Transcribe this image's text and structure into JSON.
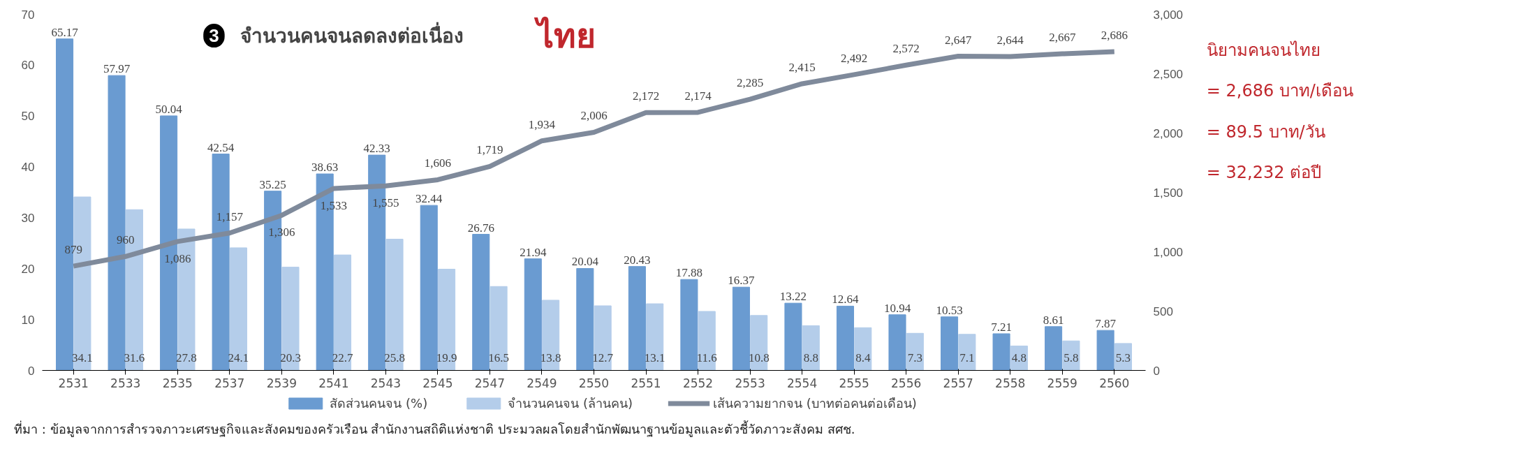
{
  "chart_data": {
    "type": "bar",
    "title": "จำนวนคนจนลดลงต่อเนื่อง",
    "subtitle": "ไทย",
    "categories": [
      "2531",
      "2533",
      "2535",
      "2537",
      "2539",
      "2541",
      "2543",
      "2545",
      "2547",
      "2549",
      "2550",
      "2551",
      "2552",
      "2553",
      "2554",
      "2555",
      "2556",
      "2557",
      "2558",
      "2559",
      "2560"
    ],
    "series": [
      {
        "name": "สัดส่วนคนจน (%)",
        "color": "#6a9bd1",
        "values": [
          65.17,
          57.97,
          50.04,
          42.54,
          35.25,
          38.63,
          42.33,
          32.44,
          26.76,
          21.94,
          20.04,
          20.43,
          17.88,
          16.37,
          13.22,
          12.64,
          10.94,
          10.53,
          7.21,
          8.61,
          7.87
        ],
        "value_labels": [
          "65.17",
          "57.97",
          "50.04",
          "42.54",
          "35.25",
          "38.63",
          "42.33",
          "32.44",
          "26.76",
          "21.94",
          "20.04",
          "20.43",
          "17.88",
          "16.37",
          "13.22",
          "12.64",
          "10.94",
          "10.53",
          "7.21",
          "8.61",
          "7.87"
        ]
      },
      {
        "name": "จำนวนคนจน (ล้านคน)",
        "color": "#b4cdea",
        "values": [
          34.1,
          31.6,
          27.8,
          24.1,
          20.3,
          22.7,
          25.8,
          19.9,
          16.5,
          13.8,
          12.7,
          13.1,
          11.6,
          10.8,
          8.8,
          8.4,
          7.3,
          7.1,
          4.8,
          5.8,
          5.3
        ],
        "value_labels": [
          "34.1",
          "31.6",
          "27.8",
          "24.1",
          "20.3",
          "22.7",
          "25.8",
          "19.9",
          "16.5",
          "13.8",
          "12.7",
          "13.1",
          "11.6",
          "10.8",
          "8.8",
          "8.4",
          "7.3",
          "7.1",
          "4.8",
          "5.8",
          "5.3"
        ]
      },
      {
        "name": "เส้นความยากจน (บาทต่อคนต่อเดือน)",
        "type": "line",
        "axis": "y2",
        "color": "#7f8a9b",
        "values": [
          879,
          960,
          1086,
          1157,
          1306,
          1533,
          1555,
          1606,
          1719,
          1934,
          2006,
          2172,
          2174,
          2285,
          2415,
          2492,
          2572,
          2647,
          2644,
          2667,
          2686
        ],
        "value_labels": [
          "879",
          "960",
          "1,086",
          "1,157",
          "1,306",
          "1,533",
          "1,555",
          "1,606",
          "1,719",
          "1,934",
          "2,006",
          "2,172",
          "2,174",
          "2,285",
          "2,415",
          "2,492",
          "2,572",
          "2,647",
          "2,644",
          "2,667",
          "2,686"
        ]
      }
    ],
    "ylim": [
      0,
      70
    ],
    "yticks": [
      0,
      10,
      20,
      30,
      40,
      50,
      60,
      70
    ],
    "y2lim": [
      0,
      3000
    ],
    "y2ticks": [
      0,
      500,
      {
        "value": 1000,
        "label": "1,000"
      },
      {
        "value": 1500,
        "label": "1,500"
      },
      {
        "value": 2000,
        "label": "2,000"
      },
      {
        "value": 2500,
        "label": "2,500"
      },
      {
        "value": 3000,
        "label": "3,000"
      }
    ],
    "legend": "bottom",
    "grid": false,
    "annotations": [
      "3",
      "นิยามคนจนไทย",
      "= 2,686 บาท/เดือน",
      "= 89.5 บาท/วัน",
      "= 32,232 ต่อปี",
      "ที่มา : ข้อมูลจากการสำรวจภาวะเศรษฐกิจและสังคมของครัวเรือน สำนักงานสถิติแห่งชาติ ประมวลผลโดยสำนักพัฒนาฐานข้อมูลและตัวชี้วัดภาวะสังคม สศช."
    ]
  }
}
